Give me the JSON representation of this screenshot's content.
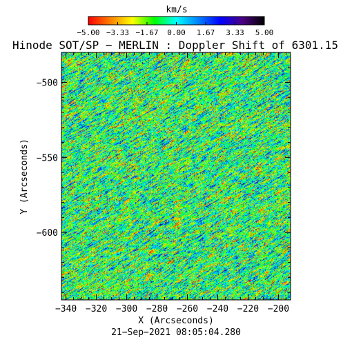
{
  "colorbar": {
    "unit_label": "km/s",
    "ticks": [
      "−5.00",
      "−3.33",
      "−1.67",
      "0.00",
      "1.67",
      "3.33",
      "5.00"
    ],
    "colors": [
      "#ff0000",
      "#ff8000",
      "#ffff00",
      "#00ff00",
      "#00ffff",
      "#0080ff",
      "#0000ff",
      "#4b0082",
      "#000000"
    ]
  },
  "title": "Hinode SOT/SP − MERLIN : Doppler Shift of 6301.15",
  "footer_timestamp": "21−Sep−2021 08:05:04.280",
  "chart_data": {
    "type": "heatmap",
    "title": "Hinode SOT/SP − MERLIN : Doppler Shift of 6301.15",
    "xlabel": "X (Arcseconds)",
    "ylabel": "Y (Arcseconds)",
    "xlim": [
      -343,
      -192
    ],
    "ylim": [
      -645,
      -480
    ],
    "x_ticks": [
      -340,
      -320,
      -300,
      -280,
      -260,
      -240,
      -220,
      -200
    ],
    "y_ticks": [
      -500,
      -550,
      -600
    ],
    "x_tick_labels": [
      "−340",
      "−320",
      "−300",
      "−280",
      "−260",
      "−240",
      "−220",
      "−200"
    ],
    "y_tick_labels": [
      "−500",
      "−550",
      "−600"
    ],
    "color_scale": {
      "min": -5.0,
      "max": 5.0,
      "unit": "km/s"
    },
    "field_description": "Granular Doppler velocity pattern; values mostly near 0 km/s (green), with scattered blue/dark (redshift) and yellow/orange (blueshift) speckles, streaked diagonally."
  }
}
